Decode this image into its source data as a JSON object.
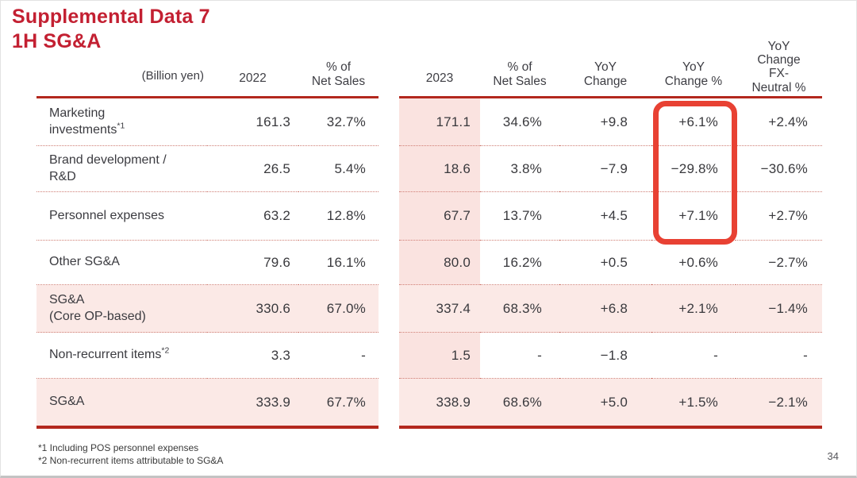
{
  "title": {
    "line1": "Supplemental Data 7",
    "line2": "1H SG&A"
  },
  "table": {
    "unit_label": "(Billion yen)",
    "columns": [
      "2022",
      "% of\nNet Sales",
      "2023",
      "% of\nNet Sales",
      "YoY\nChange",
      "YoY\nChange %",
      "YoY\nChange\nFX-\nNeutral %"
    ],
    "rows": [
      {
        "label": "Marketing\ninvestments",
        "sup": "*1",
        "values": [
          "161.3",
          "32.7%",
          "171.1",
          "34.6%",
          "+9.8",
          "+6.1%",
          "+2.4%"
        ]
      },
      {
        "label": "Brand development /\nR&D",
        "sup": "",
        "values": [
          "26.5",
          "5.4%",
          "18.6",
          "3.8%",
          "−7.9",
          "−29.8%",
          "−30.6%"
        ]
      },
      {
        "label": "Personnel expenses",
        "sup": "",
        "values": [
          "63.2",
          "12.8%",
          "67.7",
          "13.7%",
          "+4.5",
          "+7.1%",
          "+2.7%"
        ]
      },
      {
        "label": "Other SG&A",
        "sup": "",
        "values": [
          "79.6",
          "16.1%",
          "80.0",
          "16.2%",
          "+0.5",
          "+0.6%",
          "−2.7%"
        ]
      },
      {
        "label": "SG&A\n(Core OP-based)",
        "sup": "",
        "row_pink": true,
        "values": [
          "330.6",
          "67.0%",
          "337.4",
          "68.3%",
          "+6.8",
          "+2.1%",
          "−1.4%"
        ]
      },
      {
        "label": "Non-recurrent items",
        "sup": "*2",
        "values": [
          "3.3",
          "-",
          "1.5",
          "-",
          "−1.8",
          "-",
          "-"
        ]
      },
      {
        "label": "SG&A",
        "sup": "",
        "row_pink": true,
        "values": [
          "333.9",
          "67.7%",
          "338.9",
          "68.6%",
          "+5.0",
          "+1.5%",
          "−2.1%"
        ]
      }
    ]
  },
  "highlight": {
    "note": "red rounded box around YoY Change % for first three rows",
    "values_inside": [
      "+6.1%",
      "−29.8%",
      "+7.1%"
    ]
  },
  "footnotes": [
    "*1 Including POS personnel expenses",
    "*2 Non-recurrent items attributable to SG&A"
  ],
  "page_number": "34",
  "colors": {
    "title_red": "#c32032",
    "table_border_red": "#b3281e",
    "highlight_box_red": "#e84133",
    "pink_column": "#fae3e0",
    "pink_row": "#fbe9e6",
    "dotted_separator": "#cf7d73",
    "text_dark": "#39393d"
  }
}
